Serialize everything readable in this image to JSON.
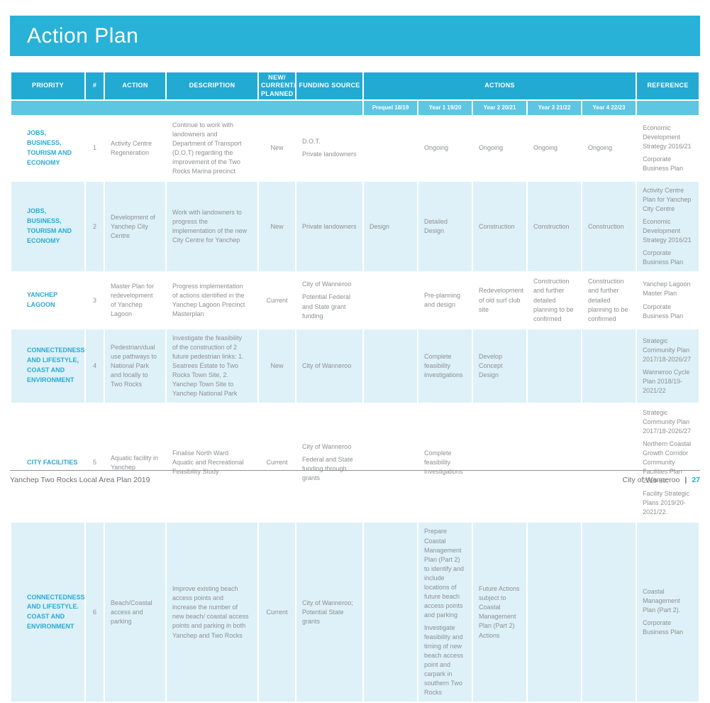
{
  "banner": {
    "title": "Action Plan"
  },
  "table": {
    "headers": {
      "priority": "PRIORITY",
      "num": "#",
      "action": "ACTION",
      "description": "DESCRIPTION",
      "status": "NEW/\nCURRENT/\nPLANNED",
      "funding": "FUNDING SOURCE",
      "actions": "ACTIONS",
      "reference": "REFERENCE"
    },
    "year_headers": [
      "Prequel 18/19",
      "Year 1 19/20",
      "Year 2 20/21",
      "Year 3 21/22",
      "Year 4 22/23"
    ],
    "rows": [
      {
        "priority": "JOBS, BUSINESS, TOURISM AND ECONOMY",
        "num": "1",
        "action": "Activity Centre Regeneration",
        "description": "Continue to work with landowners and Department of Transport (D.O.T) regarding the improvement of the Two Rocks Marina precinct",
        "status": "New",
        "funding": [
          "D.O.T.",
          "Private landowners"
        ],
        "years": [
          [],
          [
            "Ongoing"
          ],
          [
            "Ongoing"
          ],
          [
            "Ongoing"
          ],
          [
            "Ongoing"
          ]
        ],
        "reference": [
          "Economic Development Strategy 2016/21",
          "Corporate Business Plan"
        ]
      },
      {
        "priority": "JOBS, BUSINESS, TOURISM AND ECONOMY",
        "num": "2",
        "action": "Development of Yanchep City Centre",
        "description": "Work with landowners to progress the implementation of the new City Centre for Yanchep",
        "status": "New",
        "funding": [
          "Private landowners"
        ],
        "years": [
          [
            "Design"
          ],
          [
            "Detailed Design"
          ],
          [
            "Construction"
          ],
          [
            "Construction"
          ],
          [
            "Construction"
          ]
        ],
        "reference": [
          "Activity Centre Plan for Yanchep City Centre",
          "Economic Development Strategy 2016/21",
          "Corporate Business Plan"
        ]
      },
      {
        "priority": "YANCHEP LAGOON",
        "num": "3",
        "action": "Master Plan for redevelopment of Yanchep Lagoon",
        "description": "Progress implementation of actions identified in the Yanchep Lagoon Precinct Masterplan",
        "status": "Current",
        "funding": [
          "City of Wanneroo",
          "Potential Federal and State grant funding"
        ],
        "years": [
          [],
          [
            "Pre-planning and design"
          ],
          [
            "Redevelopment of old surf club site"
          ],
          [
            "Construction and further detailed planning to be confirmed"
          ],
          [
            "Construction and further detailed planning to be confirmed"
          ]
        ],
        "reference": [
          "Yanchep Lagoon Master Plan",
          "Corporate Business Plan"
        ]
      },
      {
        "priority": "CONNECTEDNESS AND LIFESTYLE, COAST AND ENVIRONMENT",
        "num": "4",
        "action": "Pedestrian/dual use pathways to National Park and locally to Two Rocks",
        "description": "Investigate the feasibility of the construction of 2 future pedestrian links: 1. Seatrees Estate to Two Rocks Town Site, 2. Yanchep Town Site to Yanchep National Park",
        "status": "New",
        "funding": [
          "City of Wanneroo"
        ],
        "years": [
          [],
          [
            "Complete feasibility investigations"
          ],
          [
            "Develop Concept Design"
          ],
          [],
          []
        ],
        "reference": [
          "Strategic Community Plan 2017/18-2026/27",
          "Wanneroo Cycle Plan 2018/19-2021/22"
        ]
      },
      {
        "priority": "CITY FACILITIES",
        "num": "5",
        "action": "Aquatic facility in Yanchep",
        "description": "Finalise North Ward Aquatic and Recreational Feasibility Study",
        "status": "Current",
        "funding": [
          "City of Wanneroo",
          "Federal and State funding through grants"
        ],
        "years": [
          [],
          [
            "Complete feasibility investigations"
          ],
          [],
          [],
          []
        ],
        "reference": [
          "Strategic Community Plan 2017/18-2026/27",
          "Northern Coastal Growth Corridor Community Facilities Plan 2019-60;",
          "Facility Strategic Plans 2019/20-2021/22."
        ]
      },
      {
        "priority": "CONNECTEDNESS AND LIFESTYLE. COAST AND ENVIRONMENT",
        "num": "6",
        "action": "Beach/Coastal access and parking",
        "description": "Improve existing beach access points and increase the number of new beach/ coastal access points and parking in both Yanchep and Two Rocks",
        "status": "Current",
        "funding": [
          "City of Wanneroo; Potential State grants"
        ],
        "years": [
          [],
          [
            "Prepare Coastal Management Plan (Part 2) to identify and include locations of future beach access points and parking",
            "Investigate feasibility and timing of new beach access point and carpark in southern Two Rocks"
          ],
          [
            "Future Actions subject to Coastal Management Plan (Part 2) Actions"
          ],
          [],
          []
        ],
        "reference": [
          "Coastal Management Plan (Part 2).",
          "Corporate Business Plan"
        ]
      }
    ]
  },
  "footer": {
    "left": "Yanchep Two Rocks Local Area Plan 2019",
    "org": "City of Wanneroo",
    "separator": "|",
    "page_number": "27"
  },
  "colors": {
    "banner_cyan": "#29b2d8",
    "header_cyan": "#23aad3",
    "subheader_cyan": "#5ec5e3",
    "row_tint": "#def1f8",
    "priority_text": "#29aad3",
    "body_text": "#8d8f92",
    "page_number": "#1da9d4"
  }
}
